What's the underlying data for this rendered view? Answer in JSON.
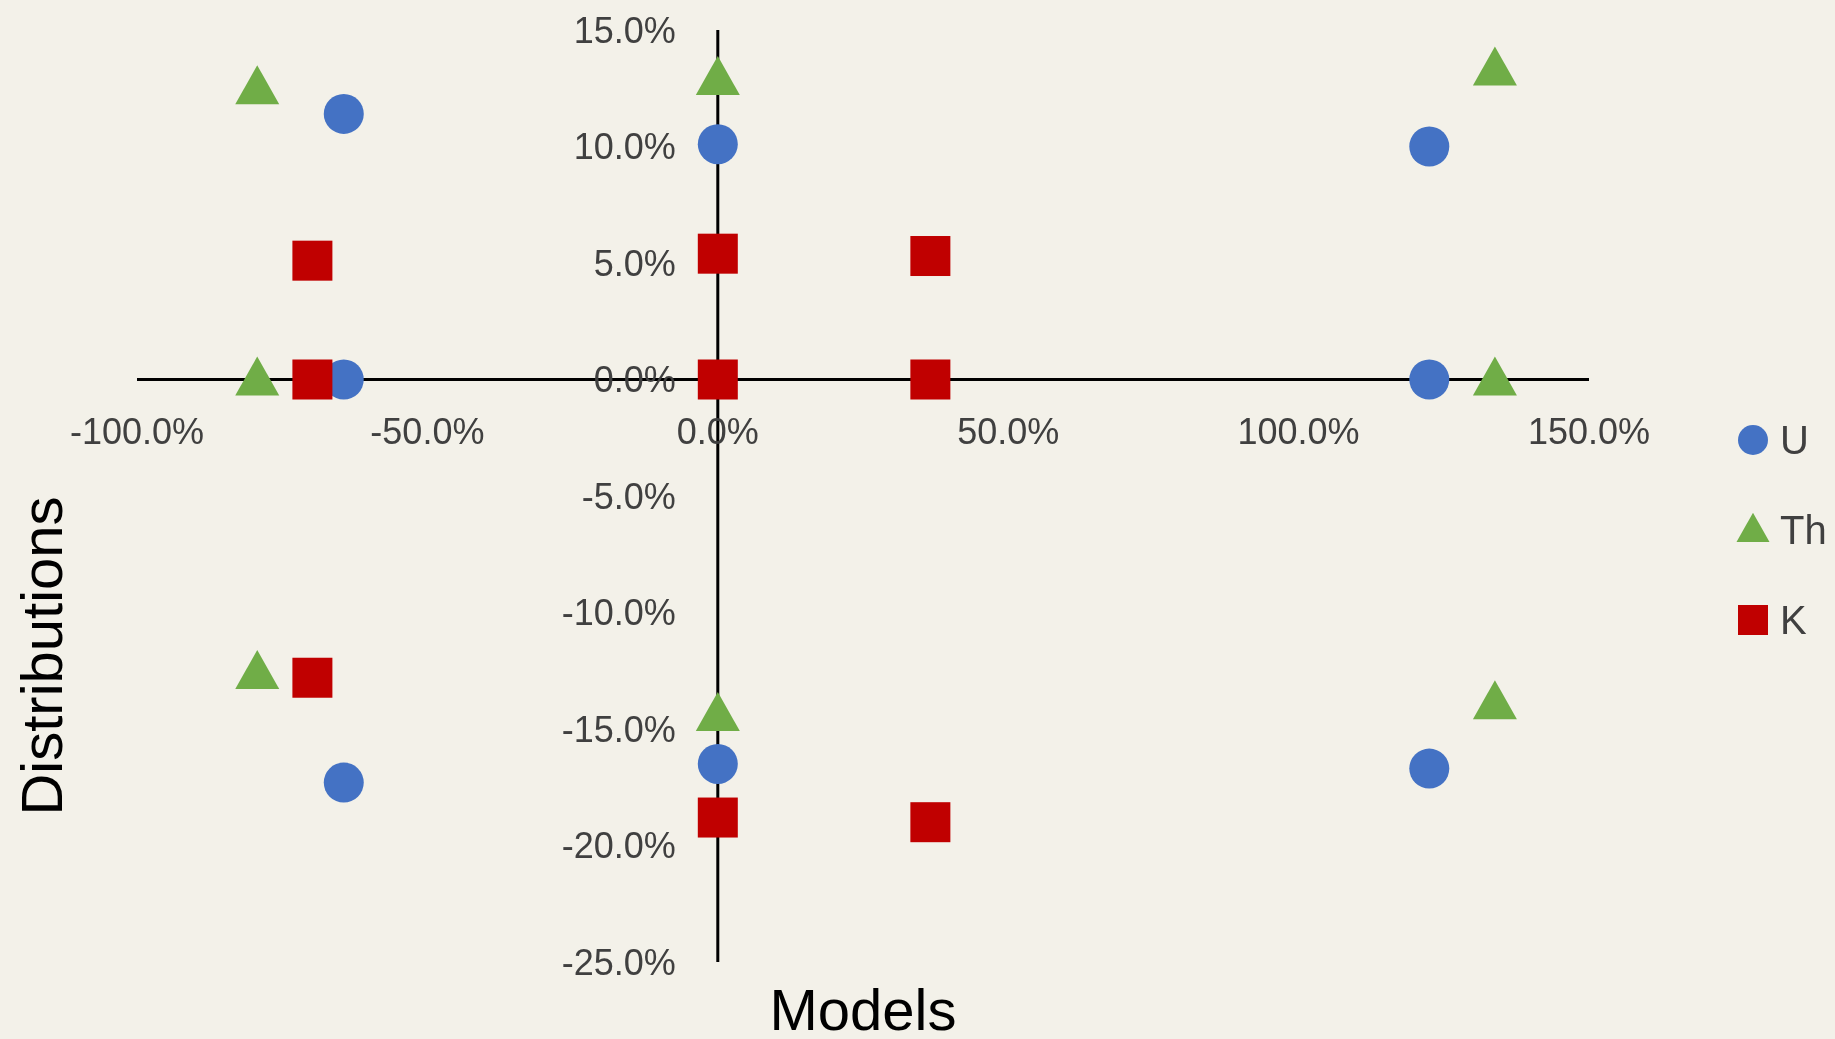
{
  "chart_data": {
    "type": "scatter",
    "xlabel": "Models",
    "ylabel": "Distributions",
    "xlim": [
      -100,
      150
    ],
    "ylim": [
      -25,
      15
    ],
    "xticks": [
      {
        "value": -100,
        "label": "-100.0%"
      },
      {
        "value": -50,
        "label": "-50.0%"
      },
      {
        "value": 0,
        "label": "0.0%"
      },
      {
        "value": 50,
        "label": "50.0%"
      },
      {
        "value": 100,
        "label": "100.0%"
      },
      {
        "value": 150,
        "label": "150.0%"
      }
    ],
    "yticks": [
      {
        "value": -25,
        "label": "-25.0%"
      },
      {
        "value": -20,
        "label": "-20.0%"
      },
      {
        "value": -15,
        "label": "-15.0%"
      },
      {
        "value": -10,
        "label": "-10.0%"
      },
      {
        "value": -5,
        "label": "-5.0%"
      },
      {
        "value": 0,
        "label": "0.0%"
      },
      {
        "value": 5,
        "label": "5.0%"
      },
      {
        "value": 10,
        "label": "10.0%"
      },
      {
        "value": 15,
        "label": "15.0%"
      }
    ],
    "grid": false,
    "legend": "right",
    "series": [
      {
        "name": "U",
        "color": "#4472c4",
        "marker": "circle",
        "x": [
          -64.4,
          0,
          122.5,
          -64.4,
          122.5,
          0,
          122.5,
          -64.4
        ],
        "values": [
          11.4,
          10.1,
          10,
          0,
          0,
          -16.5,
          -16.7,
          -17.3
        ]
      },
      {
        "name": "Th",
        "color": "#70ad47",
        "marker": "triangle",
        "x": [
          -79.3,
          0,
          133.8,
          -79.3,
          133.8,
          -79.3,
          0,
          133.8
        ],
        "values": [
          12.5,
          12.9,
          13.3,
          0,
          0,
          -12.6,
          -14.4,
          -13.9
        ]
      },
      {
        "name": "K",
        "color": "#c00000",
        "marker": "square",
        "x": [
          -69.8,
          0,
          36.6,
          -69.8,
          0,
          36.6,
          -69.8,
          0,
          36.6
        ],
        "values": [
          5.1,
          5.4,
          5.3,
          0,
          0,
          0,
          -12.8,
          -18.8,
          -19
        ]
      }
    ]
  }
}
